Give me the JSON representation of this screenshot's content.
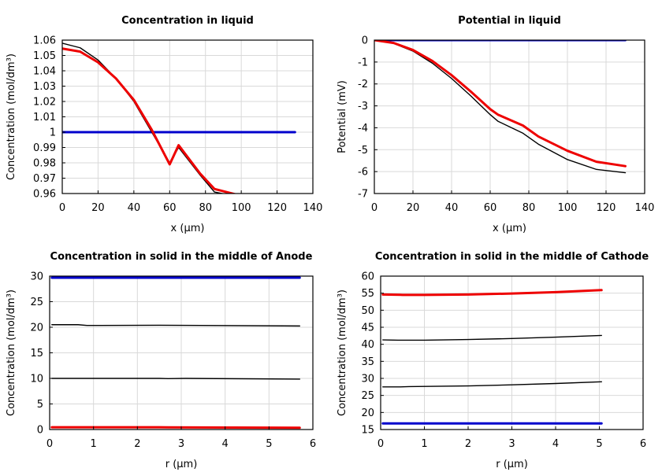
{
  "chart_data": [
    {
      "type": "line",
      "title": "Concentration in liquid",
      "xlabel": "x (µm)",
      "ylabel": "Concentration (mol/dm³)",
      "xlim": [
        0,
        140
      ],
      "ylim": [
        0.96,
        1.06
      ],
      "xticks": [
        0,
        20,
        40,
        60,
        80,
        100,
        120,
        140
      ],
      "yticks": [
        0.96,
        0.97,
        0.98,
        0.99,
        1,
        1.01,
        1.02,
        1.03,
        1.04,
        1.05,
        1.06
      ],
      "xtick_labels": [
        "0",
        "20",
        "40",
        "60",
        "80",
        "100",
        "120",
        "140"
      ],
      "ytick_labels": [
        "0.96",
        "0.97",
        "0.98",
        "0.99",
        "1",
        "1.01",
        "1.02",
        "1.03",
        "1.04",
        "1.05",
        "1.06"
      ],
      "grid": true,
      "series": [
        {
          "color": "#0000cc",
          "style": "thick",
          "x": [
            0,
            130
          ],
          "y": [
            1.0,
            1.0
          ]
        },
        {
          "color": "#000000",
          "style": "thin",
          "x": [
            0,
            10,
            20,
            30,
            40,
            50,
            60,
            65,
            77,
            85,
            100,
            115,
            130
          ],
          "y": [
            1.058,
            1.055,
            1.047,
            1.035,
            1.02,
            1.0,
            0.98,
            0.99,
            0.972,
            0.961,
            0.9575,
            0.9555,
            0.9545
          ]
        },
        {
          "color": "#ee0000",
          "style": "thick",
          "x": [
            0,
            10,
            20,
            30,
            40,
            50,
            60,
            65,
            77,
            85,
            100,
            115,
            130
          ],
          "y": [
            1.0545,
            1.0525,
            1.0455,
            1.035,
            1.021,
            1.0015,
            0.979,
            0.9915,
            0.973,
            0.963,
            0.9585,
            0.956,
            0.9555
          ]
        }
      ]
    },
    {
      "type": "line",
      "title": "Potential in liquid",
      "xlabel": "x (µm)",
      "ylabel": "Potential (mV)",
      "xlim": [
        0,
        140
      ],
      "ylim": [
        -7,
        0
      ],
      "xticks": [
        0,
        20,
        40,
        60,
        80,
        100,
        120,
        140
      ],
      "yticks": [
        -7,
        -6,
        -5,
        -4,
        -3,
        -2,
        -1,
        0
      ],
      "xtick_labels": [
        "0",
        "20",
        "40",
        "60",
        "80",
        "100",
        "120",
        "140"
      ],
      "ytick_labels": [
        "-7",
        "-6",
        "-5",
        "-4",
        "-3",
        "-2",
        "-1",
        "0"
      ],
      "grid": true,
      "series": [
        {
          "color": "#0000cc",
          "style": "thick",
          "x": [
            0,
            130
          ],
          "y": [
            0,
            0
          ]
        },
        {
          "color": "#000000",
          "style": "thin",
          "x": [
            0,
            10,
            20,
            30,
            40,
            50,
            60,
            64,
            77,
            85,
            100,
            115,
            130
          ],
          "y": [
            0,
            -0.15,
            -0.5,
            -1.05,
            -1.75,
            -2.55,
            -3.4,
            -3.7,
            -4.25,
            -4.75,
            -5.45,
            -5.9,
            -6.05
          ]
        },
        {
          "color": "#ee0000",
          "style": "thick",
          "x": [
            0,
            10,
            20,
            30,
            40,
            50,
            60,
            64,
            77,
            85,
            100,
            115,
            130
          ],
          "y": [
            0,
            -0.13,
            -0.45,
            -0.95,
            -1.6,
            -2.35,
            -3.15,
            -3.4,
            -3.9,
            -4.4,
            -5.05,
            -5.55,
            -5.75
          ]
        }
      ]
    },
    {
      "type": "line",
      "title": "Concentration in solid in the middle of Anode",
      "xlabel": "r (µm)",
      "ylabel": "Concentration (mol/dm³)",
      "xlim": [
        0,
        6
      ],
      "ylim": [
        0,
        30
      ],
      "xticks": [
        0,
        1,
        2,
        3,
        4,
        5,
        6
      ],
      "yticks": [
        0,
        5,
        10,
        15,
        20,
        25,
        30
      ],
      "xtick_labels": [
        "0",
        "1",
        "2",
        "3",
        "4",
        "5",
        "6"
      ],
      "ytick_labels": [
        "0",
        "5",
        "10",
        "15",
        "20",
        "25",
        "30"
      ],
      "grid": true,
      "series": [
        {
          "color": "#0000cc",
          "style": "thick",
          "x": [
            0.05,
            5.7
          ],
          "y": [
            29.7,
            29.7
          ]
        },
        {
          "color": "#000000",
          "style": "thin",
          "x": [
            0.05,
            0.65,
            0.85,
            2.5,
            5.7
          ],
          "y": [
            20.5,
            20.5,
            20.35,
            20.4,
            20.25
          ]
        },
        {
          "color": "#000000",
          "style": "thin",
          "x": [
            0.05,
            2.5,
            2.7,
            3.1,
            5.7
          ],
          "y": [
            10.0,
            10.0,
            9.95,
            10.0,
            9.85
          ]
        },
        {
          "color": "#ee0000",
          "style": "thick",
          "x": [
            0.05,
            2.5,
            2.7,
            5.7
          ],
          "y": [
            0.45,
            0.45,
            0.42,
            0.35
          ]
        }
      ]
    },
    {
      "type": "line",
      "title": "Concentration in solid in the middle of Cathode",
      "xlabel": "r (µm)",
      "ylabel": "Concentration (mol/dm³)",
      "xlim": [
        0,
        6
      ],
      "ylim": [
        15,
        60
      ],
      "xticks": [
        0,
        1,
        2,
        3,
        4,
        5,
        6
      ],
      "yticks": [
        15,
        20,
        25,
        30,
        35,
        40,
        45,
        50,
        55,
        60
      ],
      "xtick_labels": [
        "0",
        "1",
        "2",
        "3",
        "4",
        "5",
        "6"
      ],
      "ytick_labels": [
        "15",
        "20",
        "25",
        "30",
        "35",
        "40",
        "45",
        "50",
        "55",
        "60"
      ],
      "grid": true,
      "series": [
        {
          "color": "#0000cc",
          "style": "thick",
          "x": [
            0.05,
            5.05
          ],
          "y": [
            16.8,
            16.8
          ]
        },
        {
          "color": "#000000",
          "style": "thin",
          "x": [
            0.05,
            0.4,
            1,
            2,
            3,
            4,
            5.05
          ],
          "y": [
            41.3,
            41.2,
            41.2,
            41.4,
            41.7,
            42.1,
            42.6
          ]
        },
        {
          "color": "#000000",
          "style": "thin",
          "x": [
            0.05,
            0.45,
            0.65,
            2,
            3,
            4,
            5.05
          ],
          "y": [
            27.5,
            27.5,
            27.6,
            27.8,
            28.1,
            28.5,
            29.0
          ]
        },
        {
          "color": "#ee0000",
          "style": "thick",
          "x": [
            0.05,
            0.5,
            1,
            2,
            3,
            4,
            5.05
          ],
          "y": [
            54.6,
            54.5,
            54.5,
            54.6,
            54.9,
            55.3,
            55.9
          ]
        }
      ]
    }
  ]
}
